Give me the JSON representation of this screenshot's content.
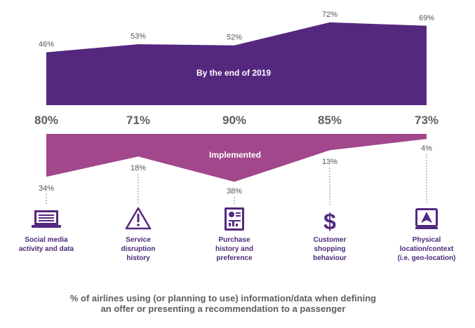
{
  "colors": {
    "plan_band": "#55287f",
    "implemented_band": "#a2478c",
    "icon": "#55287f",
    "totals_text": "#5f5f5f",
    "caption_text": "#5e5e5e",
    "leader_line": "#888888"
  },
  "chart_data": {
    "type": "area",
    "categories": [
      "Social media activity and data",
      "Service disruption history",
      "Purchase history and preference",
      "Customer shopping behaviour",
      "Physical location/context (i.e. geo-location)"
    ],
    "category_lines": [
      [
        "Social media",
        "activity and data"
      ],
      [
        "Service",
        "disruption",
        "history"
      ],
      [
        "Purchase",
        "history and",
        "preference"
      ],
      [
        "Customer",
        "shopping",
        "behaviour"
      ],
      [
        "Physical",
        "location/context",
        "(i.e. geo-location)"
      ]
    ],
    "icons": [
      "laptop-icon",
      "warning-icon",
      "document-icon",
      "dollar-icon",
      "location-icon"
    ],
    "series": [
      {
        "name": "By the end of 2019",
        "values": [
          46,
          53,
          52,
          72,
          69
        ],
        "labels": [
          "46%",
          "53%",
          "52%",
          "72%",
          "69%"
        ]
      },
      {
        "name": "Implemented",
        "values": [
          34,
          18,
          38,
          13,
          4
        ],
        "labels": [
          "34%",
          "18%",
          "38%",
          "13%",
          "4%"
        ]
      }
    ],
    "totals": [
      80,
      71,
      90,
      85,
      73
    ],
    "total_labels": [
      "80%",
      "71%",
      "90%",
      "85%",
      "73%"
    ],
    "caption_lines": [
      "% of airlines using (or planning to use) information/data when defining",
      "an offer or presenting a recommendation to a passenger"
    ]
  }
}
